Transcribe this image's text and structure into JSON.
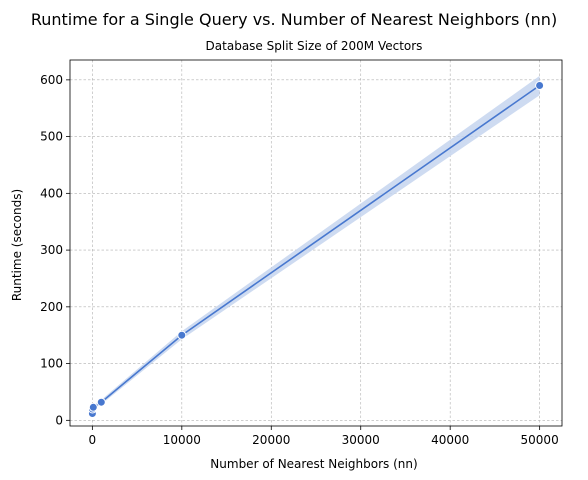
{
  "chart_data": {
    "type": "line",
    "title": "Runtime for a Single Query vs. Number of Nearest Neighbors (nn)",
    "subtitle": "Database Split Size of 200M Vectors",
    "xlabel": "Number of Nearest Neighbors (nn)",
    "ylabel": "Runtime (seconds)",
    "xlim": [
      -2500,
      52500
    ],
    "ylim": [
      -10,
      635
    ],
    "xticks": [
      0,
      10000,
      20000,
      30000,
      40000,
      50000
    ],
    "yticks": [
      0,
      100,
      200,
      300,
      400,
      500,
      600
    ],
    "grid": true,
    "series": [
      {
        "x": [
          1,
          10,
          100,
          1000,
          10000,
          50000
        ],
        "y": [
          12,
          20,
          23,
          32,
          150,
          590
        ],
        "ci_low": [
          10,
          17,
          20,
          28,
          143,
          573
        ],
        "ci_high": [
          14,
          23,
          26,
          36,
          157,
          607
        ],
        "color": "#4878cf",
        "band_color": "#c6d5ef"
      }
    ]
  }
}
